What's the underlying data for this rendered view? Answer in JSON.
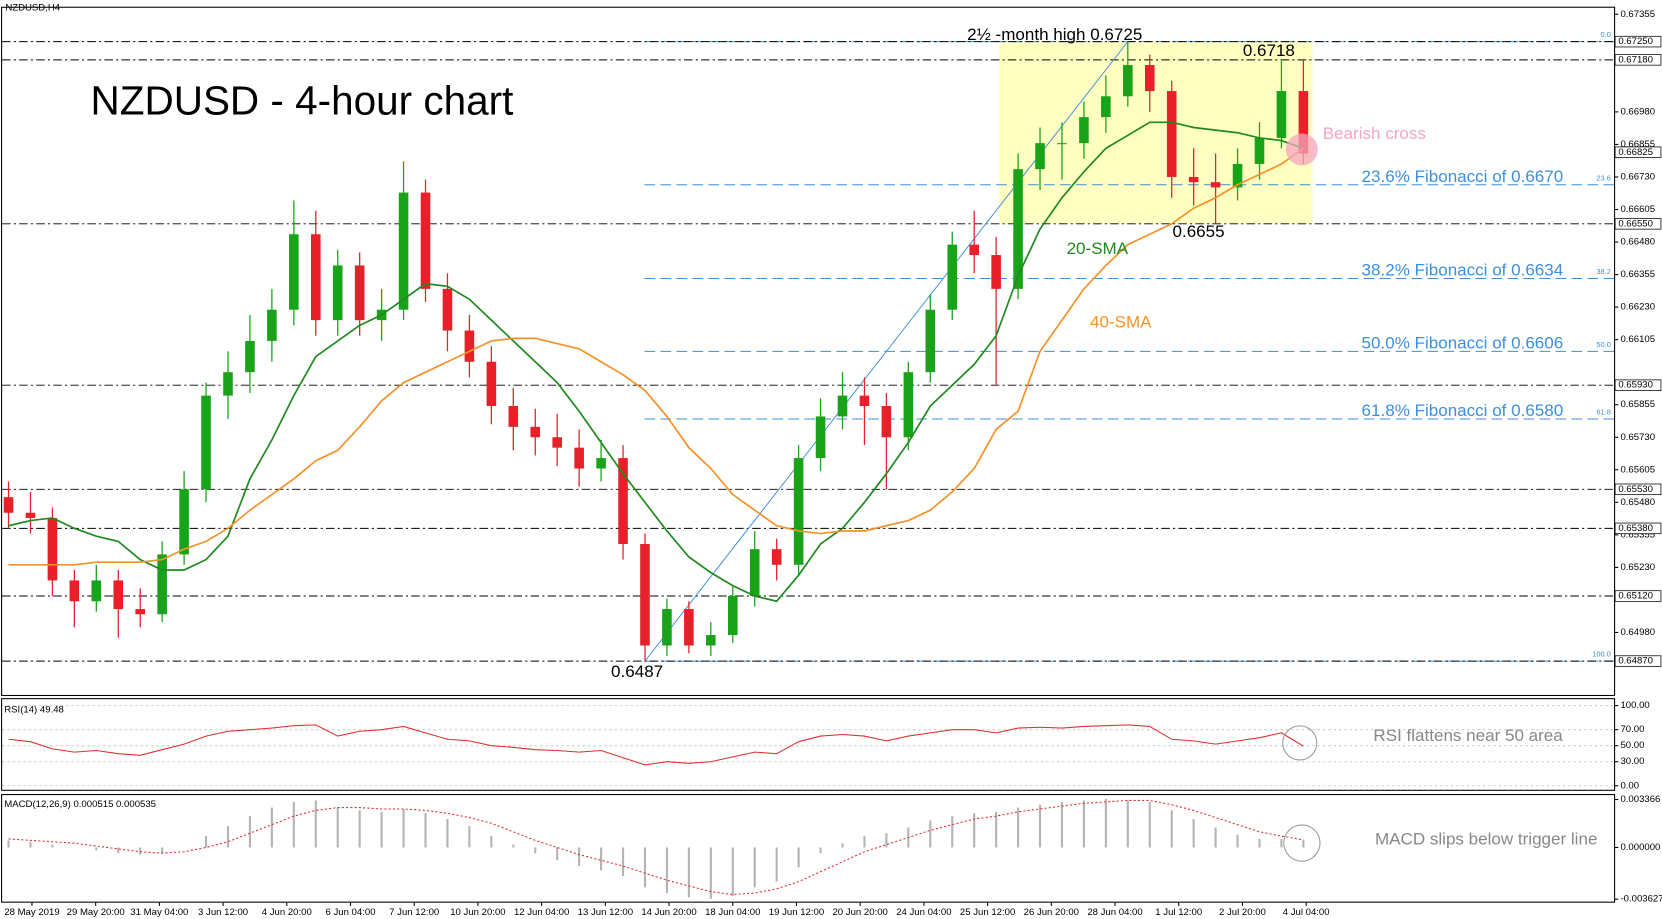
{
  "chart_data": {
    "type": "candlestick",
    "symbol": "NZDUSD,H4",
    "title": "NZDUSD - 4-hour chart",
    "x_labels": [
      "28 May 2019",
      "29 May 20:00",
      "31 May 04:00",
      "3 Jun 12:00",
      "4 Jun 20:00",
      "6 Jun 04:00",
      "7 Jun 12:00",
      "10 Jun 20:00",
      "12 Jun 04:00",
      "13 Jun 12:00",
      "14 Jun 20:00",
      "18 Jun 04:00",
      "19 Jun 12:00",
      "20 Jun 20:00",
      "24 Jun 04:00",
      "25 Jun 12:00",
      "26 Jun 20:00",
      "28 Jun 04:00",
      "1 Jul 12:00",
      "2 Jul 20:00",
      "4 Jul 04:00"
    ],
    "open": [
      0.655,
      0.6544,
      0.6542,
      0.6518,
      0.651,
      0.6518,
      0.6507,
      0.6505,
      0.6528,
      0.6553,
      0.6589,
      0.6598,
      0.661,
      0.6622,
      0.6651,
      0.6618,
      0.6639,
      0.6618,
      0.6622,
      0.6667,
      0.663,
      0.6614,
      0.6602,
      0.6585,
      0.6577,
      0.6573,
      0.6569,
      0.6561,
      0.6565,
      0.6532,
      0.6493,
      0.6507,
      0.6493,
      0.6497,
      0.6512,
      0.653,
      0.6524,
      0.6565,
      0.6581,
      0.6589,
      0.6585,
      0.6573,
      0.6598,
      0.6622,
      0.6647,
      0.6643,
      0.663,
      0.6676,
      0.6686,
      0.6686,
      0.6696,
      0.6704,
      0.6716,
      0.6706,
      0.6673,
      0.6671,
      0.6669,
      0.6678,
      0.6688,
      0.6706
    ],
    "high": [
      0.6556,
      0.6552,
      0.6546,
      0.6522,
      0.6524,
      0.6522,
      0.6515,
      0.6533,
      0.656,
      0.6594,
      0.6606,
      0.662,
      0.663,
      0.6664,
      0.666,
      0.6645,
      0.6644,
      0.663,
      0.6679,
      0.6672,
      0.6636,
      0.662,
      0.6608,
      0.6592,
      0.6584,
      0.6582,
      0.6576,
      0.6572,
      0.657,
      0.6536,
      0.6511,
      0.651,
      0.6502,
      0.6516,
      0.6537,
      0.6534,
      0.657,
      0.6588,
      0.6598,
      0.6596,
      0.659,
      0.6602,
      0.6628,
      0.6652,
      0.666,
      0.665,
      0.6682,
      0.6692,
      0.6694,
      0.6702,
      0.6712,
      0.6725,
      0.672,
      0.671,
      0.6684,
      0.6682,
      0.6684,
      0.6694,
      0.6718,
      0.6718
    ],
    "low": [
      0.6538,
      0.6536,
      0.6512,
      0.65,
      0.6506,
      0.6496,
      0.65,
      0.6502,
      0.6524,
      0.6548,
      0.658,
      0.659,
      0.6602,
      0.6616,
      0.6612,
      0.6612,
      0.6612,
      0.661,
      0.6618,
      0.6625,
      0.6606,
      0.6596,
      0.6578,
      0.6568,
      0.6566,
      0.6562,
      0.6554,
      0.6556,
      0.6526,
      0.6487,
      0.6489,
      0.649,
      0.6489,
      0.6494,
      0.6508,
      0.6518,
      0.652,
      0.656,
      0.6576,
      0.657,
      0.6553,
      0.6568,
      0.6594,
      0.6618,
      0.6636,
      0.6593,
      0.6626,
      0.6668,
      0.6672,
      0.668,
      0.669,
      0.67,
      0.6698,
      0.6665,
      0.6662,
      0.6655,
      0.6664,
      0.6672,
      0.6684,
      0.6678
    ],
    "close": [
      0.6544,
      0.6542,
      0.6518,
      0.651,
      0.6518,
      0.6507,
      0.6505,
      0.6528,
      0.6553,
      0.6589,
      0.6598,
      0.661,
      0.6622,
      0.6651,
      0.6618,
      0.6639,
      0.6618,
      0.6622,
      0.6667,
      0.663,
      0.6614,
      0.6602,
      0.6585,
      0.6577,
      0.6573,
      0.6569,
      0.6561,
      0.6565,
      0.6532,
      0.6493,
      0.6507,
      0.6493,
      0.6497,
      0.6512,
      0.653,
      0.6524,
      0.6565,
      0.6581,
      0.6589,
      0.6585,
      0.6573,
      0.6598,
      0.6622,
      0.6647,
      0.6643,
      0.663,
      0.6676,
      0.6686,
      0.6686,
      0.6696,
      0.6704,
      0.6716,
      0.6706,
      0.6673,
      0.6671,
      0.6669,
      0.6678,
      0.6688,
      0.6706,
      0.6682
    ],
    "up_color": "#19a319",
    "down_color": "#e8202a",
    "sma": [
      {
        "name": "20-SMA",
        "color": "#1f8a1f",
        "values": [
          0.6539,
          0.6541,
          0.6542,
          0.6538,
          0.6535,
          0.6533,
          0.6526,
          0.6522,
          0.6522,
          0.6526,
          0.6535,
          0.6557,
          0.6572,
          0.6589,
          0.6604,
          0.661,
          0.6616,
          0.662,
          0.6626,
          0.6632,
          0.6631,
          0.6626,
          0.6618,
          0.661,
          0.6602,
          0.6594,
          0.6583,
          0.6571,
          0.6559,
          0.6548,
          0.6537,
          0.6527,
          0.6521,
          0.6516,
          0.6512,
          0.651,
          0.652,
          0.6532,
          0.6538,
          0.6548,
          0.6559,
          0.6571,
          0.6585,
          0.6593,
          0.6601,
          0.6612,
          0.6635,
          0.6653,
          0.6665,
          0.6675,
          0.6684,
          0.6689,
          0.6694,
          0.6694,
          0.6692,
          0.6691,
          0.669,
          0.6688,
          0.6687,
          0.6684
        ]
      },
      {
        "name": "40-SMA",
        "color": "#f5922a",
        "values": [
          0.6524,
          0.6524,
          0.6524,
          0.6524,
          0.6525,
          0.6525,
          0.6525,
          0.6526,
          0.653,
          0.6533,
          0.6538,
          0.6545,
          0.6551,
          0.6557,
          0.6564,
          0.6568,
          0.6577,
          0.6587,
          0.6594,
          0.6598,
          0.6602,
          0.6606,
          0.661,
          0.6611,
          0.6611,
          0.6609,
          0.6607,
          0.6602,
          0.6597,
          0.6591,
          0.6581,
          0.6569,
          0.6561,
          0.6551,
          0.6545,
          0.6539,
          0.6537,
          0.6536,
          0.6537,
          0.6537,
          0.6539,
          0.6541,
          0.6545,
          0.6552,
          0.6561,
          0.6576,
          0.6583,
          0.6606,
          0.6618,
          0.663,
          0.6639,
          0.6647,
          0.6651,
          0.6655,
          0.6661,
          0.6665,
          0.667,
          0.6674,
          0.6678,
          0.6684
        ]
      }
    ],
    "ylim": [
      0.6474,
      0.6738
    ],
    "yticks": [
      {
        "value": 0.6498,
        "label": "0.64980"
      },
      {
        "value": 0.6523,
        "label": "0.65230"
      },
      {
        "value": 0.65355,
        "label": "0.65355"
      },
      {
        "value": 0.6548,
        "label": "0.65480"
      },
      {
        "value": 0.65605,
        "label": "0.65605"
      },
      {
        "value": 0.6573,
        "label": "0.65730"
      },
      {
        "value": 0.65855,
        "label": "0.65855"
      },
      {
        "value": 0.66105,
        "label": "0.66105"
      },
      {
        "value": 0.6623,
        "label": "0.66230"
      },
      {
        "value": 0.66355,
        "label": "0.66355"
      },
      {
        "value": 0.6648,
        "label": "0.66480"
      },
      {
        "value": 0.66605,
        "label": "0.66605"
      },
      {
        "value": 0.6673,
        "label": "0.66730"
      },
      {
        "value": 0.66855,
        "label": "0.66855"
      },
      {
        "value": 0.6698,
        "label": "0.66980"
      },
      {
        "value": 0.67355,
        "label": "0.67355"
      }
    ],
    "levels": [
      {
        "value": 0.6725,
        "label": "0.67250"
      },
      {
        "value": 0.6718,
        "label": "0.67180"
      },
      {
        "value": 0.6655,
        "label": "0.66550"
      },
      {
        "value": 0.6593,
        "label": "0.65930"
      },
      {
        "value": 0.6553,
        "label": "0.65530"
      },
      {
        "value": 0.6538,
        "label": "0.65380"
      },
      {
        "value": 0.6512,
        "label": "0.65120"
      },
      {
        "value": 0.6487,
        "label": "0.64870"
      }
    ],
    "current_price": {
      "value": 0.66825,
      "label": "0.66825"
    },
    "fibonacci": [
      {
        "level": "0.0",
        "value": 0.6725
      },
      {
        "level": "23.6",
        "value": 0.667,
        "label": "23.6% Fibonacci of 0.6670"
      },
      {
        "level": "38.2",
        "value": 0.6634,
        "label": "38.2% Fibonacci of 0.6634"
      },
      {
        "level": "50.0",
        "value": 0.6606,
        "label": "50.0% Fibonacci of 0.6606"
      },
      {
        "level": "61.8",
        "value": 0.658,
        "label": "61.8% Fibonacci of 0.6580"
      },
      {
        "level": "100.0",
        "value": 0.6487
      }
    ],
    "fib_color": "#3d8fdc",
    "annotations": {
      "high": "2½ -month high 0.6725",
      "second_high": "0.6718",
      "dip": "0.6655",
      "low": "0.6487",
      "cross": "Bearish cross"
    },
    "rsi": {
      "label": "RSI(14) 49.48",
      "color": "#e03030",
      "ylim": [
        -5,
        108
      ],
      "grid": true,
      "yticks": [
        {
          "value": 100,
          "label": "100.00"
        },
        {
          "value": 70,
          "label": "70.00"
        },
        {
          "value": 50,
          "label": "50.00"
        },
        {
          "value": 30,
          "label": "30.00"
        },
        {
          "value": 0,
          "label": "0.00"
        }
      ],
      "values": [
        58,
        55,
        46,
        42,
        44,
        40,
        38,
        45,
        52,
        62,
        68,
        70,
        72,
        75,
        76,
        62,
        68,
        70,
        74,
        66,
        58,
        56,
        50,
        48,
        45,
        44,
        42,
        44,
        35,
        26,
        30,
        28,
        30,
        36,
        42,
        40,
        55,
        62,
        64,
        62,
        56,
        62,
        66,
        70,
        70,
        66,
        72,
        73,
        72,
        74,
        75,
        76,
        74,
        58,
        56,
        52,
        56,
        60,
        66,
        49.48
      ],
      "note": "RSI flattens near 50 area"
    },
    "macd": {
      "label": "MACD(12,26,9) 0.000515 0.000535",
      "hist_color": "#b4b4b4",
      "signal_color": "#e03030",
      "ylim": [
        -0.0038,
        0.0036
      ],
      "yticks": [
        {
          "value": 0.003366,
          "label": "0.003366"
        },
        {
          "value": 0,
          "label": "0.000000"
        },
        {
          "value": -0.003627,
          "label": "-0.003627"
        }
      ],
      "histogram": [
        0.0005,
        0.0004,
        0.0002,
        0.0,
        -0.0002,
        -0.0004,
        -0.0005,
        -0.0004,
        0.0,
        0.0008,
        0.0015,
        0.0022,
        0.0028,
        0.0032,
        0.0033,
        0.0028,
        0.0026,
        0.0025,
        0.0027,
        0.0024,
        0.002,
        0.0015,
        0.0008,
        0.0002,
        -0.0004,
        -0.0009,
        -0.0013,
        -0.0016,
        -0.002,
        -0.0028,
        -0.0032,
        -0.0035,
        -0.0036,
        -0.0034,
        -0.0028,
        -0.0024,
        -0.0014,
        -0.0004,
        0.0003,
        0.0008,
        0.001,
        0.0014,
        0.0019,
        0.0022,
        0.0024,
        0.0025,
        0.0028,
        0.003,
        0.0032,
        0.0033,
        0.0034,
        0.0033,
        0.0032,
        0.0026,
        0.002,
        0.0014,
        0.0009,
        0.0006,
        0.0006,
        0.000515
      ],
      "signal": [
        0.0006,
        0.0005,
        0.0004,
        0.0003,
        0.0001,
        -0.0001,
        -0.0003,
        -0.0004,
        -0.0003,
        0.0,
        0.0004,
        0.001,
        0.0016,
        0.0022,
        0.0026,
        0.0028,
        0.0028,
        0.0027,
        0.0027,
        0.0026,
        0.0024,
        0.0021,
        0.0017,
        0.0011,
        0.0005,
        0.0,
        -0.0005,
        -0.0009,
        -0.0013,
        -0.0018,
        -0.0023,
        -0.0027,
        -0.0031,
        -0.0033,
        -0.0032,
        -0.0029,
        -0.0024,
        -0.0017,
        -0.001,
        -0.0003,
        0.0002,
        0.0007,
        0.0012,
        0.0016,
        0.002,
        0.0022,
        0.0025,
        0.0027,
        0.0029,
        0.0031,
        0.0032,
        0.0033,
        0.0033,
        0.003,
        0.0026,
        0.0021,
        0.0016,
        0.0011,
        0.0008,
        0.000535
      ],
      "note": "MACD slips below trigger line"
    }
  }
}
